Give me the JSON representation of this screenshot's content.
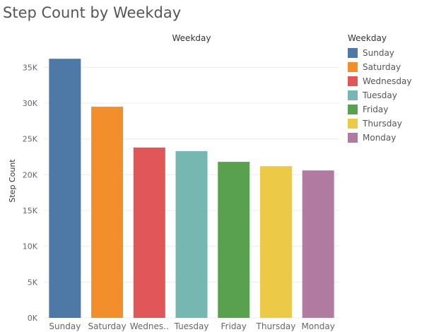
{
  "chart_data": {
    "type": "bar",
    "title": "Step Count by Weekday",
    "column_header": "Weekday",
    "ylabel": "Step Count",
    "ylim": [
      0,
      37500
    ],
    "yticks": [
      0,
      5000,
      10000,
      15000,
      20000,
      25000,
      30000,
      35000
    ],
    "ytick_labels": [
      "0K",
      "5K",
      "10K",
      "15K",
      "20K",
      "25K",
      "30K",
      "35K"
    ],
    "categories": [
      "Sunday",
      "Saturday",
      "Wednes..",
      "Tuesday",
      "Friday",
      "Thursday",
      "Monday"
    ],
    "values": [
      36200,
      29500,
      23800,
      23300,
      21800,
      21200,
      20600
    ],
    "colors": [
      "#4e79a7",
      "#f28e2b",
      "#e15759",
      "#76b7b2",
      "#59a14f",
      "#edc948",
      "#b07aa1"
    ],
    "legend": {
      "title": "Weekday",
      "position": "right",
      "items": [
        {
          "label": "Sunday",
          "color": "#4e79a7"
        },
        {
          "label": "Saturday",
          "color": "#f28e2b"
        },
        {
          "label": "Wednesday",
          "color": "#e15759"
        },
        {
          "label": "Tuesday",
          "color": "#76b7b2"
        },
        {
          "label": "Friday",
          "color": "#59a14f"
        },
        {
          "label": "Thursday",
          "color": "#edc948"
        },
        {
          "label": "Monday",
          "color": "#b07aa1"
        }
      ]
    },
    "grid": true
  }
}
